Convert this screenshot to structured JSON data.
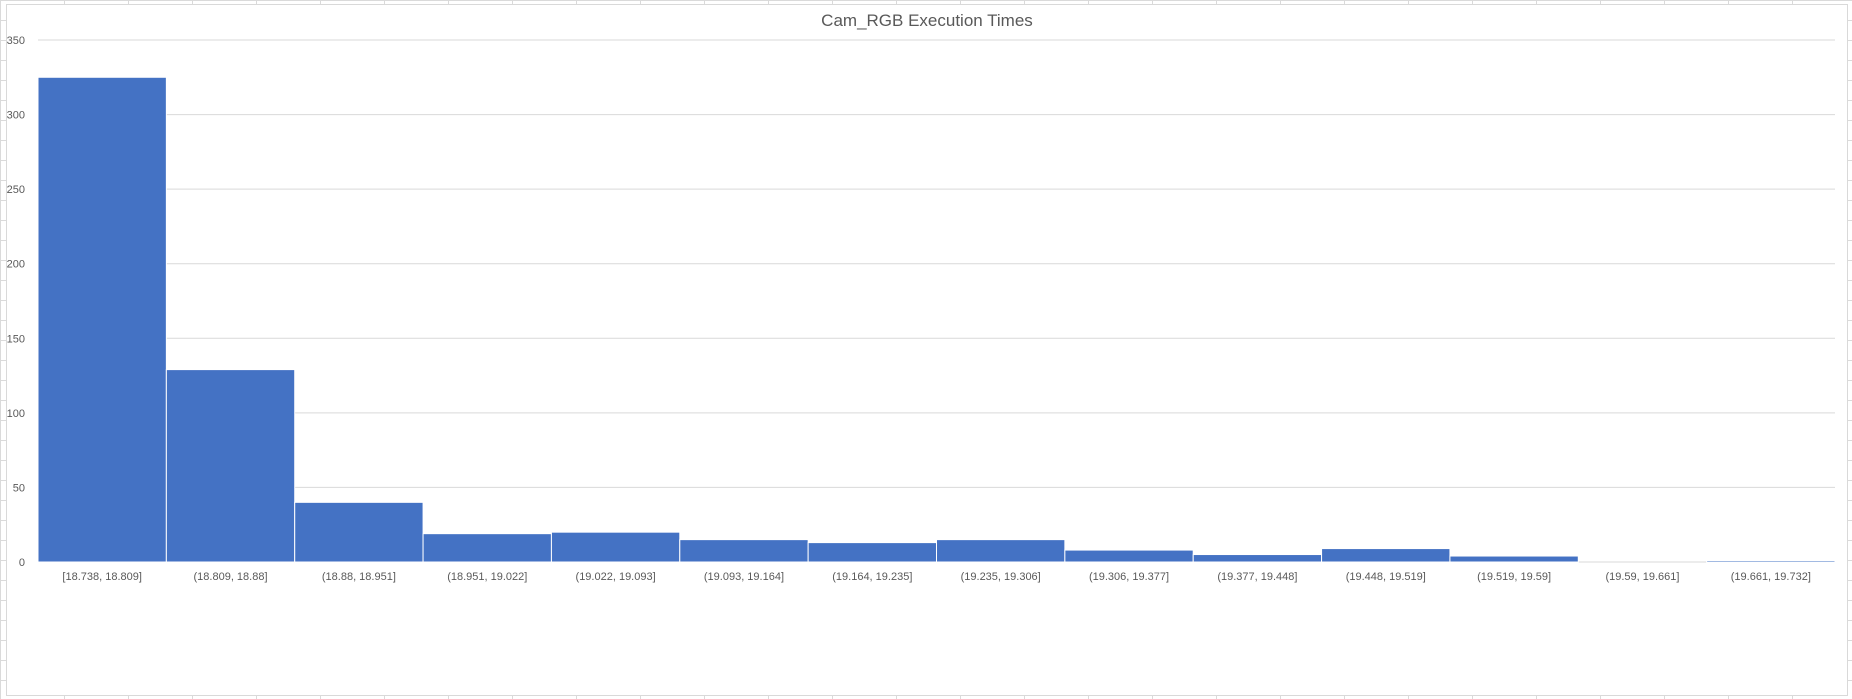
{
  "chart_data": {
    "type": "bar",
    "title": "Cam_RGB Execution Times",
    "xlabel": "",
    "ylabel": "",
    "ylim": [
      0,
      350
    ],
    "yticks": [
      0,
      50,
      100,
      150,
      200,
      250,
      300,
      350
    ],
    "grid": true,
    "legend": "none",
    "bar_color": "#4472C4",
    "categories": [
      "[18.738, 18.809]",
      "(18.809, 18.88]",
      "(18.88, 18.951]",
      "(18.951, 19.022]",
      "(19.022, 19.093]",
      "(19.093, 19.164]",
      "(19.164, 19.235]",
      "(19.235, 19.306]",
      "(19.306, 19.377]",
      "(19.377, 19.448]",
      "(19.448, 19.519]",
      "(19.519, 19.59]",
      "(19.59, 19.661]",
      "(19.661, 19.732]"
    ],
    "values": [
      325,
      129,
      40,
      19,
      20,
      15,
      13,
      15,
      8,
      5,
      9,
      4,
      0,
      1
    ]
  }
}
